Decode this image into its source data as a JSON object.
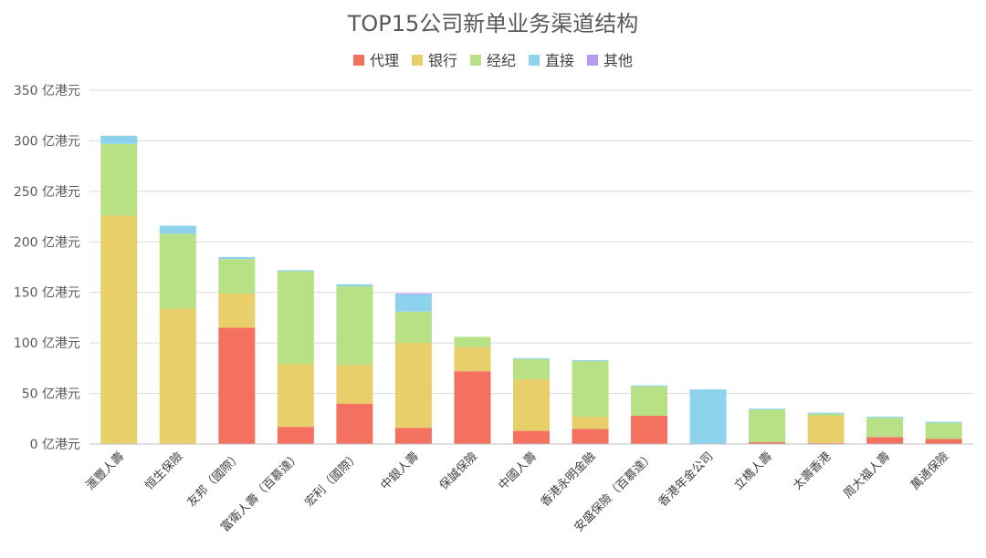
{
  "chart_data": {
    "type": "bar",
    "stacked": true,
    "title": "TOP15公司新单业务渠道结构",
    "legend_position": "top",
    "grid": true,
    "ylim": [
      0,
      350
    ],
    "yticks": [
      0,
      50,
      100,
      150,
      200,
      250,
      300,
      350
    ],
    "y_unit_label": "亿港元",
    "categories": [
      "滙豐人壽",
      "恒生保險",
      "友邦（國際）",
      "富衛人壽（百慕達）",
      "宏利（國際）",
      "中銀人壽",
      "保誠保險",
      "中國人壽",
      "香港永明金融",
      "安盛保險（百慕達）",
      "香港年金公司",
      "立橋人壽",
      "太壽香港",
      "周大福人壽",
      "萬通保險"
    ],
    "series": [
      {
        "name": "代理",
        "color": "#F4705F",
        "values": [
          0,
          0,
          115,
          17,
          40,
          16,
          72,
          13,
          15,
          28,
          0,
          2,
          1,
          7,
          5
        ]
      },
      {
        "name": "银行",
        "color": "#E8CF6A",
        "values": [
          226,
          134,
          34,
          62,
          38,
          84,
          24,
          51,
          12,
          0,
          0,
          0,
          27,
          0,
          0
        ]
      },
      {
        "name": "经纪",
        "color": "#B7E184",
        "values": [
          71,
          74,
          34,
          92,
          78,
          31,
          10,
          20,
          55,
          29,
          0,
          32,
          2,
          19,
          16
        ]
      },
      {
        "name": "直接",
        "color": "#8DD3EE",
        "values": [
          8,
          8,
          2,
          1,
          2,
          17,
          0,
          1,
          1,
          1,
          54,
          1,
          1,
          1,
          1
        ]
      },
      {
        "name": "其他",
        "color": "#B39DF2",
        "values": [
          0,
          0,
          0,
          0,
          0,
          1,
          0,
          0,
          0,
          0,
          0,
          0,
          0,
          0,
          0
        ]
      }
    ]
  }
}
